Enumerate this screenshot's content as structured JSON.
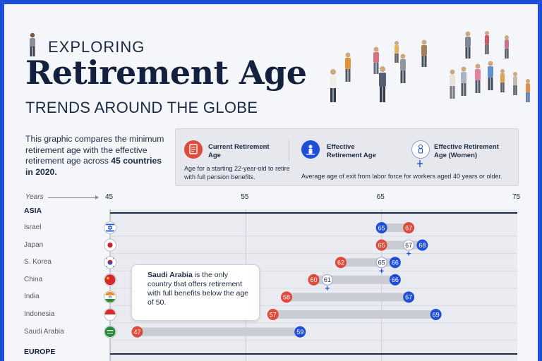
{
  "header": {
    "kicker": "EXPLORING",
    "title": "Retirement Age",
    "subtitle": "TRENDS AROUND THE GLOBE"
  },
  "intro": {
    "text_before": "This graphic compares the minimum retirement age with the effective retirement age across ",
    "bold": "45 countries in 2020."
  },
  "legend": {
    "current_title": "Current Retirement Age",
    "current_desc": "Age for a starting 22-year-old to retire with full pension benefits.",
    "effective_title": "Effective Retirement Age",
    "women_title": "Effective Retirement Age (Women)",
    "effective_desc": "Average age of exit from labor force for workers aged 40 years or older.",
    "colors": {
      "current": "#e04a3a",
      "effective": "#1f4fd8",
      "women": "#ffffff"
    }
  },
  "callout": {
    "bold": "Saudi Arabia",
    "text": " is the only country that offers retirement with full benefits below the age of 50."
  },
  "chart_data": {
    "type": "dumbbell",
    "x_label": "Years",
    "xlim": [
      45,
      75
    ],
    "x_ticks": [
      45,
      55,
      65,
      75
    ],
    "regions": [
      {
        "name": "ASIA",
        "rows": [
          {
            "country": "Israel",
            "flag": "israel-flag",
            "current": 67,
            "effective": 65,
            "women": null
          },
          {
            "country": "Japan",
            "flag": "japan-flag",
            "current": 65,
            "effective": 68,
            "women": 67
          },
          {
            "country": "S. Korea",
            "flag": "south-korea-flag",
            "current": 62,
            "effective": 66,
            "women": 65
          },
          {
            "country": "China",
            "flag": "china-flag",
            "current": 60,
            "effective": 66,
            "women": 61
          },
          {
            "country": "India",
            "flag": "india-flag",
            "current": 58,
            "effective": 67,
            "women": null
          },
          {
            "country": "Indonesia",
            "flag": "indonesia-flag",
            "current": 57,
            "effective": 69,
            "women": null
          },
          {
            "country": "Saudi Arabia",
            "flag": "saudi-arabia-flag",
            "current": 47,
            "effective": 59,
            "women": null
          }
        ]
      },
      {
        "name": "EUROPE",
        "rows": []
      }
    ]
  }
}
